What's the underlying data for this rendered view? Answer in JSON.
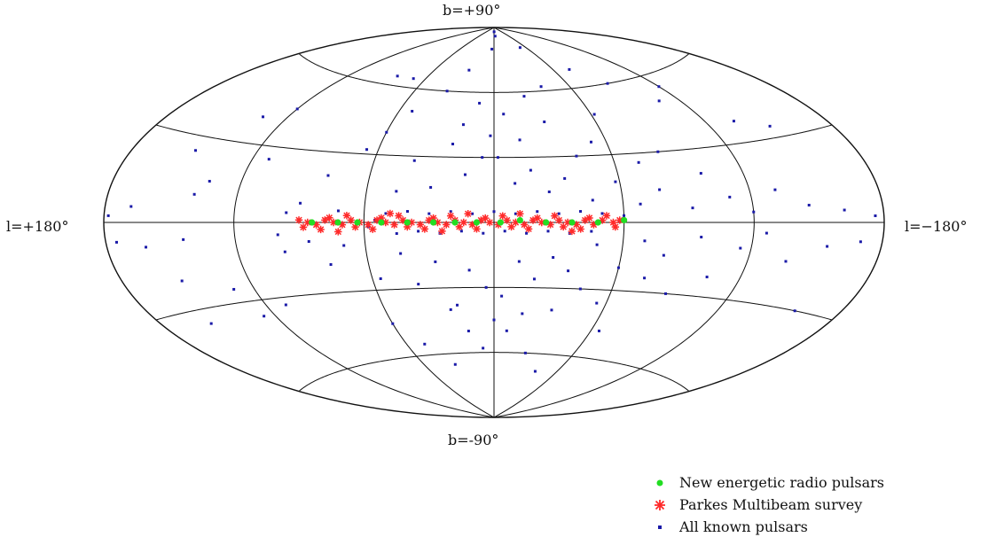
{
  "chart_data": {
    "type": "scatter",
    "projection": "Aitoff",
    "title": "",
    "labels": {
      "top": "b=+90°",
      "bottom": "b=-90°",
      "left": "l=+180°",
      "right": "l=−180°"
    },
    "xlim": [
      180,
      -180
    ],
    "ylim": [
      -90,
      90
    ],
    "grid": true,
    "legend_position": "bottom-right",
    "series": [
      {
        "name": "All known pulsars",
        "color": "#1a1aa8",
        "marker": "small-square",
        "points": [
          [
            -1,
            88
          ],
          [
            -5,
            86
          ],
          [
            4,
            80
          ],
          [
            -50,
            80
          ],
          [
            70,
            64
          ],
          [
            85,
            64
          ],
          [
            -75,
            68
          ],
          [
            -90,
            60
          ],
          [
            -108,
            50
          ],
          [
            -120,
            55
          ],
          [
            -135,
            38
          ],
          [
            -150,
            34
          ],
          [
            120,
            45
          ],
          [
            133,
            40
          ],
          [
            150,
            25
          ],
          [
            152,
            -20
          ],
          [
            162,
            -8
          ],
          [
            168,
            5
          ],
          [
            175,
            -6
          ],
          [
            140,
            10
          ],
          [
            144,
            -6
          ],
          [
            135,
            15
          ],
          [
            130,
            -25
          ],
          [
            126,
            -36
          ],
          [
            110,
            -33
          ],
          [
            112,
            25
          ],
          [
            100,
            -5
          ],
          [
            98,
            -12
          ],
          [
            96,
            4
          ],
          [
            90,
            8
          ],
          [
            86,
            -8
          ],
          [
            80,
            20
          ],
          [
            78,
            -18
          ],
          [
            72,
            5
          ],
          [
            70,
            -10
          ],
          [
            66,
            32
          ],
          [
            60,
            40
          ],
          [
            60,
            -45
          ],
          [
            56,
            -25
          ],
          [
            52,
            50
          ],
          [
            48,
            -55
          ],
          [
            46,
            14
          ],
          [
            44,
            -14
          ],
          [
            40,
            28
          ],
          [
            38,
            -28
          ],
          [
            36,
            60
          ],
          [
            34,
            -65
          ],
          [
            30,
            16
          ],
          [
            28,
            -18
          ],
          [
            26,
            70
          ],
          [
            24,
            -40
          ],
          [
            22,
            36
          ],
          [
            20,
            -38
          ],
          [
            18,
            45
          ],
          [
            16,
            -50
          ],
          [
            14,
            22
          ],
          [
            12,
            -22
          ],
          [
            10,
            55
          ],
          [
            8,
            -58
          ],
          [
            6,
            30
          ],
          [
            4,
            -30
          ],
          [
            2,
            40
          ],
          [
            0,
            -45
          ],
          [
            -2,
            30
          ],
          [
            -4,
            -34
          ],
          [
            -6,
            50
          ],
          [
            -8,
            -50
          ],
          [
            -10,
            18
          ],
          [
            -12,
            -18
          ],
          [
            -14,
            38
          ],
          [
            -16,
            -42
          ],
          [
            -18,
            24
          ],
          [
            -20,
            -26
          ],
          [
            -22,
            58
          ],
          [
            -24,
            -60
          ],
          [
            -26,
            14
          ],
          [
            -28,
            -16
          ],
          [
            -30,
            46
          ],
          [
            -32,
            -40
          ],
          [
            -34,
            20
          ],
          [
            -36,
            -22
          ],
          [
            -38,
            62
          ],
          [
            -40,
            -68
          ],
          [
            -42,
            30
          ],
          [
            -44,
            -30
          ],
          [
            -46,
            10
          ],
          [
            -48,
            -10
          ],
          [
            -52,
            36
          ],
          [
            -55,
            -36
          ],
          [
            -58,
            18
          ],
          [
            -60,
            -20
          ],
          [
            -62,
            48
          ],
          [
            -65,
            -48
          ],
          [
            -68,
            8
          ],
          [
            -70,
            -8
          ],
          [
            -72,
            26
          ],
          [
            -74,
            -24
          ],
          [
            -78,
            14
          ],
          [
            -80,
            -14
          ],
          [
            -84,
            30
          ],
          [
            -88,
            -30
          ],
          [
            -92,
            6
          ],
          [
            -96,
            -6
          ],
          [
            -100,
            20
          ],
          [
            -104,
            -22
          ],
          [
            -110,
            10
          ],
          [
            -115,
            -10
          ],
          [
            -120,
            4
          ],
          [
            -126,
            -4
          ],
          [
            -132,
            12
          ],
          [
            -138,
            -14
          ],
          [
            -146,
            6
          ],
          [
            -155,
            -8
          ],
          [
            -162,
            4
          ],
          [
            -170,
            -6
          ],
          [
            -176,
            2
          ],
          [
            178,
            2
          ],
          [
            156,
            -35
          ],
          [
            -158,
            -30
          ],
          [
            -60,
            3
          ],
          [
            -50,
            4
          ],
          [
            -40,
            5
          ],
          [
            -30,
            4
          ],
          [
            -20,
            5
          ],
          [
            -10,
            4
          ],
          [
            0,
            5
          ],
          [
            10,
            4
          ],
          [
            20,
            5
          ],
          [
            30,
            4
          ],
          [
            40,
            5
          ],
          [
            50,
            4
          ],
          [
            55,
            1
          ],
          [
            58,
            -2
          ],
          [
            -45,
            -4
          ],
          [
            -35,
            -5
          ],
          [
            -25,
            -4
          ],
          [
            -15,
            -5
          ],
          [
            -5,
            -4
          ],
          [
            5,
            -5
          ],
          [
            15,
            -4
          ],
          [
            25,
            -5
          ],
          [
            35,
            -4
          ],
          [
            45,
            -5
          ]
        ]
      },
      {
        "name": "Parkes Multibeam survey",
        "color": "#ff2a2a",
        "marker": "star",
        "points": [
          [
            -55,
            0
          ],
          [
            -50,
            1
          ],
          [
            -46,
            -1
          ],
          [
            -42,
            1
          ],
          [
            -38,
            -1
          ],
          [
            -34,
            0
          ],
          [
            -30,
            1
          ],
          [
            -26,
            -1
          ],
          [
            -22,
            0
          ],
          [
            -18,
            1
          ],
          [
            -14,
            -1
          ],
          [
            -10,
            0
          ],
          [
            -6,
            1
          ],
          [
            -2,
            -1
          ],
          [
            2,
            0
          ],
          [
            6,
            1
          ],
          [
            10,
            -1
          ],
          [
            14,
            0
          ],
          [
            18,
            1
          ],
          [
            22,
            -1
          ],
          [
            26,
            0
          ],
          [
            30,
            1
          ],
          [
            34,
            -1
          ],
          [
            38,
            0
          ],
          [
            42,
            1
          ],
          [
            46,
            -1
          ],
          [
            50,
            0
          ],
          [
            54,
            1
          ],
          [
            58,
            -1
          ],
          [
            62,
            0
          ],
          [
            66,
            1
          ],
          [
            70,
            -1
          ],
          [
            74,
            0
          ],
          [
            78,
            1
          ],
          [
            82,
            -1
          ],
          [
            86,
            0
          ],
          [
            90,
            1
          ],
          [
            -56,
            -2
          ],
          [
            -44,
            2
          ],
          [
            -32,
            -2
          ],
          [
            -20,
            2
          ],
          [
            -8,
            -2
          ],
          [
            4,
            2
          ],
          [
            16,
            -2
          ],
          [
            28,
            2
          ],
          [
            40,
            -2
          ],
          [
            52,
            2
          ],
          [
            64,
            -2
          ],
          [
            76,
            2
          ],
          [
            88,
            -2
          ],
          [
            -52,
            3
          ],
          [
            -40,
            -3
          ],
          [
            -28,
            3
          ],
          [
            -16,
            -3
          ],
          [
            -4,
            3
          ],
          [
            8,
            -3
          ],
          [
            20,
            3
          ],
          [
            32,
            -3
          ],
          [
            44,
            3
          ],
          [
            56,
            -3
          ],
          [
            68,
            3
          ],
          [
            80,
            -3
          ],
          [
            -58,
            1
          ],
          [
            -12,
            4
          ],
          [
            24,
            -4
          ],
          [
            48,
            4
          ],
          [
            72,
            -4
          ],
          [
            -36,
            -4
          ],
          [
            12,
            4
          ]
        ]
      },
      {
        "name": "New energetic radio pulsars",
        "color": "#22dd22",
        "marker": "dot",
        "points": [
          [
            -60,
            1
          ],
          [
            -48,
            0
          ],
          [
            -36,
            0
          ],
          [
            -24,
            0
          ],
          [
            -12,
            1
          ],
          [
            -3,
            0
          ],
          [
            8,
            0
          ],
          [
            18,
            0
          ],
          [
            28,
            0
          ],
          [
            40,
            0
          ],
          [
            52,
            0
          ],
          [
            63,
            0
          ],
          [
            72,
            0
          ],
          [
            84,
            0
          ]
        ]
      }
    ]
  }
}
